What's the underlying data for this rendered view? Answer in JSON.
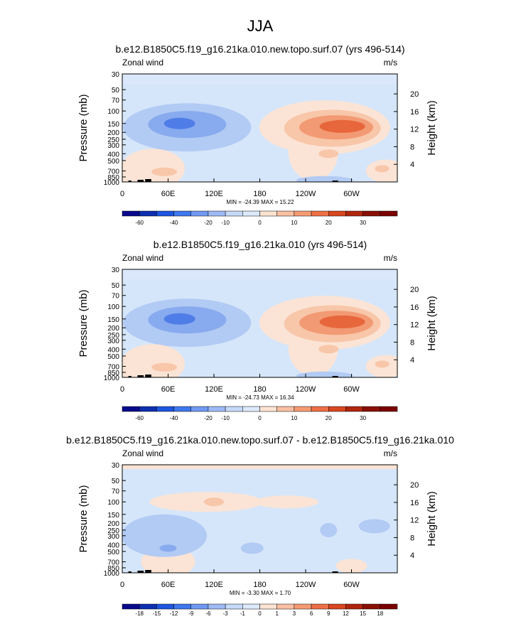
{
  "figure_title": "JJA",
  "chart_data": [
    {
      "type": "contour",
      "title": "b.e12.B1850C5.f19_g16.21ka.010.new.topo.surf.07 (yrs 496-514)",
      "left_string": "Zonal wind",
      "right_string": "m/s",
      "ylabel": "Pressure (mb)",
      "ylabel_right": "Height (km)",
      "x_ticks": [
        "0",
        "60E",
        "120E",
        "180",
        "120W",
        "60W"
      ],
      "y_ticks": [
        "30",
        "50",
        "70",
        "100",
        "150",
        "200",
        "250",
        "300",
        "400",
        "500",
        "700",
        "850",
        "1000"
      ],
      "height_ticks": [
        "20",
        "16",
        "12",
        "8",
        "4"
      ],
      "min_label": "MIN = -24.39",
      "max_label": "MAX =  15.22",
      "colorbar_labels": [
        "-60",
        "-40",
        "-20",
        "-10",
        "0",
        "10",
        "20",
        "30"
      ],
      "features": [
        {
          "lon": 80,
          "p": 150,
          "value": -24.39
        },
        {
          "lon": 280,
          "p": 170,
          "value": 15.22
        }
      ]
    },
    {
      "type": "contour",
      "title": "b.e12.B1850C5.f19_g16.21ka.010 (yrs 496-514)",
      "left_string": "Zonal wind",
      "right_string": "m/s",
      "ylabel": "Pressure (mb)",
      "ylabel_right": "Height (km)",
      "x_ticks": [
        "0",
        "60E",
        "120E",
        "180",
        "120W",
        "60W"
      ],
      "y_ticks": [
        "30",
        "50",
        "70",
        "100",
        "150",
        "200",
        "250",
        "300",
        "400",
        "500",
        "700",
        "850",
        "1000"
      ],
      "height_ticks": [
        "20",
        "16",
        "12",
        "8",
        "4"
      ],
      "min_label": "MIN = -24.73",
      "max_label": "MAX =  16.34",
      "colorbar_labels": [
        "-60",
        "-40",
        "-20",
        "-10",
        "0",
        "10",
        "20",
        "30"
      ],
      "features": [
        {
          "lon": 80,
          "p": 150,
          "value": -24.73
        },
        {
          "lon": 280,
          "p": 160,
          "value": 16.34
        }
      ]
    },
    {
      "type": "contour",
      "title": "b.e12.B1850C5.f19_g16.21ka.010.new.topo.surf.07 - b.e12.B1850C5.f19_g16.21ka.010",
      "left_string": "Zonal wind",
      "right_string": "m/s",
      "ylabel": "Pressure (mb)",
      "ylabel_right": "Height (km)",
      "x_ticks": [
        "0",
        "60E",
        "120E",
        "180",
        "120W",
        "60W"
      ],
      "y_ticks": [
        "30",
        "50",
        "70",
        "100",
        "150",
        "200",
        "250",
        "300",
        "400",
        "500",
        "700",
        "850",
        "1000"
      ],
      "height_ticks": [
        "20",
        "16",
        "12",
        "8",
        "4"
      ],
      "min_label": "MIN =  -3.30",
      "max_label": "MAX =   1.70",
      "colorbar_labels": [
        "-18",
        "-15",
        "-12",
        "-9",
        "-6",
        "-3",
        "-1",
        "0",
        "1",
        "3",
        "6",
        "9",
        "12",
        "15",
        "18"
      ],
      "features": [
        {
          "lon": 270,
          "p": 250,
          "value": -3.3
        },
        {
          "lon": 110,
          "p": 100,
          "value": 1.7
        }
      ]
    }
  ],
  "colors": {
    "colorbar_a": [
      "#08088c",
      "#0d2fb0",
      "#1e55e0",
      "#3f78ee",
      "#6f99f2",
      "#9ebaf5",
      "#c6d9f8",
      "#dce9fb",
      "#fde3d1",
      "#f9c0a2",
      "#f59a72",
      "#ee6f45",
      "#d9461f",
      "#b0260d",
      "#8a0f05",
      "#7a0000"
    ],
    "colorbar_b": [
      "#08088c",
      "#0d2fb0",
      "#1e55e0",
      "#3f78ee",
      "#6f99f2",
      "#9ebaf5",
      "#c6d9f8",
      "#dce9fb",
      "#fde3d1",
      "#f9c0a2",
      "#f59a72",
      "#ee6f45",
      "#d9461f",
      "#b0260d",
      "#8a0f05",
      "#7a0000"
    ],
    "light_blue": "#d6e6fa",
    "mid_blue": "#b2cbf4",
    "blue": "#88aaee",
    "deep_blue": "#4f7de8",
    "light_red": "#fbe4d5",
    "mid_red": "#f8c6a9",
    "red": "#f29a73",
    "deep_red": "#e8663c"
  }
}
